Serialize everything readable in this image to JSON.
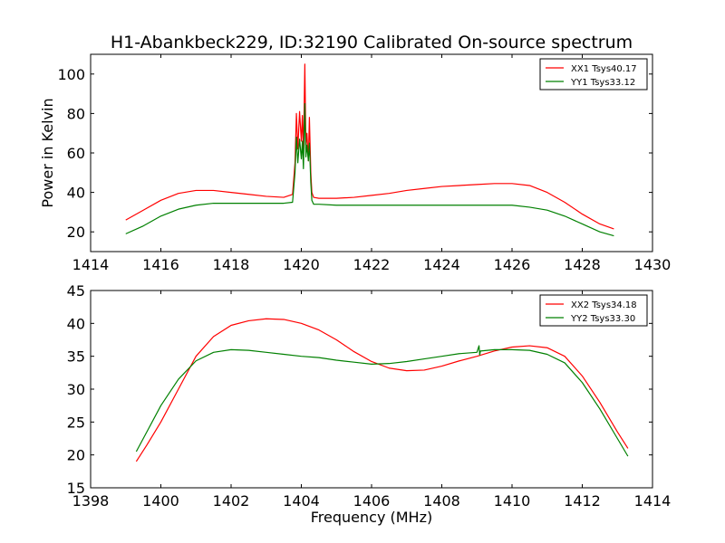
{
  "chart_data": [
    {
      "type": "line",
      "title": "H1-Abankbeck229, ID:32190 Calibrated On-source spectrum",
      "xlabel": "",
      "ylabel": "Power in Kelvin",
      "xlim": [
        1414,
        1430
      ],
      "ylim": [
        10,
        110
      ],
      "xticks": [
        1414,
        1416,
        1418,
        1420,
        1422,
        1424,
        1426,
        1428,
        1430
      ],
      "yticks": [
        20,
        40,
        60,
        80,
        100
      ],
      "legend_position": "top-right",
      "series": [
        {
          "name": "XX1 Tsys40.17",
          "color": "#ff0000",
          "x": [
            1415.0,
            1415.5,
            1416.0,
            1416.5,
            1417.0,
            1417.5,
            1418.0,
            1418.5,
            1419.0,
            1419.5,
            1419.75,
            1419.82,
            1419.86,
            1419.9,
            1419.95,
            1420.0,
            1420.03,
            1420.06,
            1420.1,
            1420.13,
            1420.16,
            1420.2,
            1420.23,
            1420.27,
            1420.3,
            1420.35,
            1420.5,
            1421.0,
            1421.5,
            1422.0,
            1422.5,
            1423.0,
            1423.5,
            1424.0,
            1424.5,
            1425.0,
            1425.5,
            1426.0,
            1426.5,
            1427.0,
            1427.5,
            1428.0,
            1428.5,
            1428.9
          ],
          "y": [
            26,
            31,
            36,
            39.5,
            41,
            41,
            40,
            39,
            38,
            37.5,
            39,
            55,
            80,
            62,
            81,
            66,
            79,
            60,
            105,
            64,
            70,
            56,
            78,
            50,
            40,
            37.5,
            37,
            37,
            37.5,
            38.5,
            39.5,
            41,
            42,
            43,
            43.5,
            44,
            44.5,
            44.5,
            43.5,
            40,
            35,
            29,
            24,
            21.5
          ]
        },
        {
          "name": "YY1 Tsys33.12",
          "color": "#008000",
          "x": [
            1415.0,
            1415.5,
            1416.0,
            1416.5,
            1417.0,
            1417.5,
            1418.0,
            1418.5,
            1419.0,
            1419.5,
            1419.75,
            1419.82,
            1419.86,
            1419.9,
            1419.95,
            1420.0,
            1420.03,
            1420.06,
            1420.1,
            1420.13,
            1420.16,
            1420.2,
            1420.23,
            1420.27,
            1420.3,
            1420.35,
            1420.5,
            1421.0,
            1421.5,
            1422.0,
            1422.5,
            1423.0,
            1423.5,
            1424.0,
            1424.5,
            1425.0,
            1425.5,
            1426.0,
            1426.5,
            1427.0,
            1427.5,
            1428.0,
            1428.5,
            1428.9
          ],
          "y": [
            19,
            23,
            28,
            31.5,
            33.5,
            34.5,
            34.5,
            34.5,
            34.5,
            34.5,
            35,
            50,
            68,
            55,
            67,
            57,
            66,
            52,
            85,
            58,
            64,
            56,
            65,
            45,
            36,
            34,
            34,
            33.5,
            33.5,
            33.5,
            33.5,
            33.5,
            33.5,
            33.5,
            33.5,
            33.5,
            33.5,
            33.5,
            32.5,
            31,
            28,
            24,
            20,
            18
          ]
        }
      ]
    },
    {
      "type": "line",
      "title": "",
      "xlabel": "Frequency (MHz)",
      "ylabel": "",
      "xlim": [
        1398,
        1414
      ],
      "ylim": [
        15,
        45
      ],
      "xticks": [
        1398,
        1400,
        1402,
        1404,
        1406,
        1408,
        1410,
        1412,
        1414
      ],
      "yticks": [
        15,
        20,
        25,
        30,
        35,
        40,
        45
      ],
      "legend_position": "top-right",
      "series": [
        {
          "name": "XX2 Tsys34.18",
          "color": "#ff0000",
          "x": [
            1399.3,
            1399.6,
            1400.0,
            1400.5,
            1401.0,
            1401.5,
            1402.0,
            1402.5,
            1403.0,
            1403.5,
            1404.0,
            1404.5,
            1405.0,
            1405.5,
            1406.0,
            1406.5,
            1407.0,
            1407.5,
            1408.0,
            1408.5,
            1409.0,
            1409.5,
            1410.0,
            1410.5,
            1411.0,
            1411.5,
            1412.0,
            1412.5,
            1413.0,
            1413.3
          ],
          "y": [
            19,
            21.5,
            25,
            30,
            35,
            38,
            39.7,
            40.4,
            40.7,
            40.6,
            40,
            39,
            37.5,
            35.7,
            34.2,
            33.2,
            32.8,
            32.9,
            33.5,
            34.3,
            35,
            35.8,
            36.4,
            36.6,
            36.3,
            35,
            32,
            28,
            23.5,
            21
          ]
        },
        {
          "name": "YY2 Tsys33.30",
          "color": "#008000",
          "x": [
            1399.3,
            1399.6,
            1400.0,
            1400.5,
            1401.0,
            1401.5,
            1402.0,
            1402.5,
            1403.0,
            1403.5,
            1404.0,
            1404.5,
            1405.0,
            1405.5,
            1406.0,
            1406.5,
            1407.0,
            1407.5,
            1408.0,
            1408.5,
            1409.0,
            1409.06,
            1409.08,
            1409.1,
            1409.5,
            1410.0,
            1410.5,
            1411.0,
            1411.5,
            1412.0,
            1412.5,
            1413.0,
            1413.3
          ],
          "y": [
            20.5,
            23.5,
            27.5,
            31.5,
            34.3,
            35.6,
            36,
            35.9,
            35.6,
            35.3,
            35,
            34.8,
            34.4,
            34.1,
            33.8,
            33.9,
            34.2,
            34.6,
            35,
            35.4,
            35.6,
            36.6,
            35.2,
            35.8,
            36,
            36,
            35.9,
            35.3,
            34,
            31,
            27,
            22.5,
            19.8
          ]
        }
      ]
    }
  ]
}
